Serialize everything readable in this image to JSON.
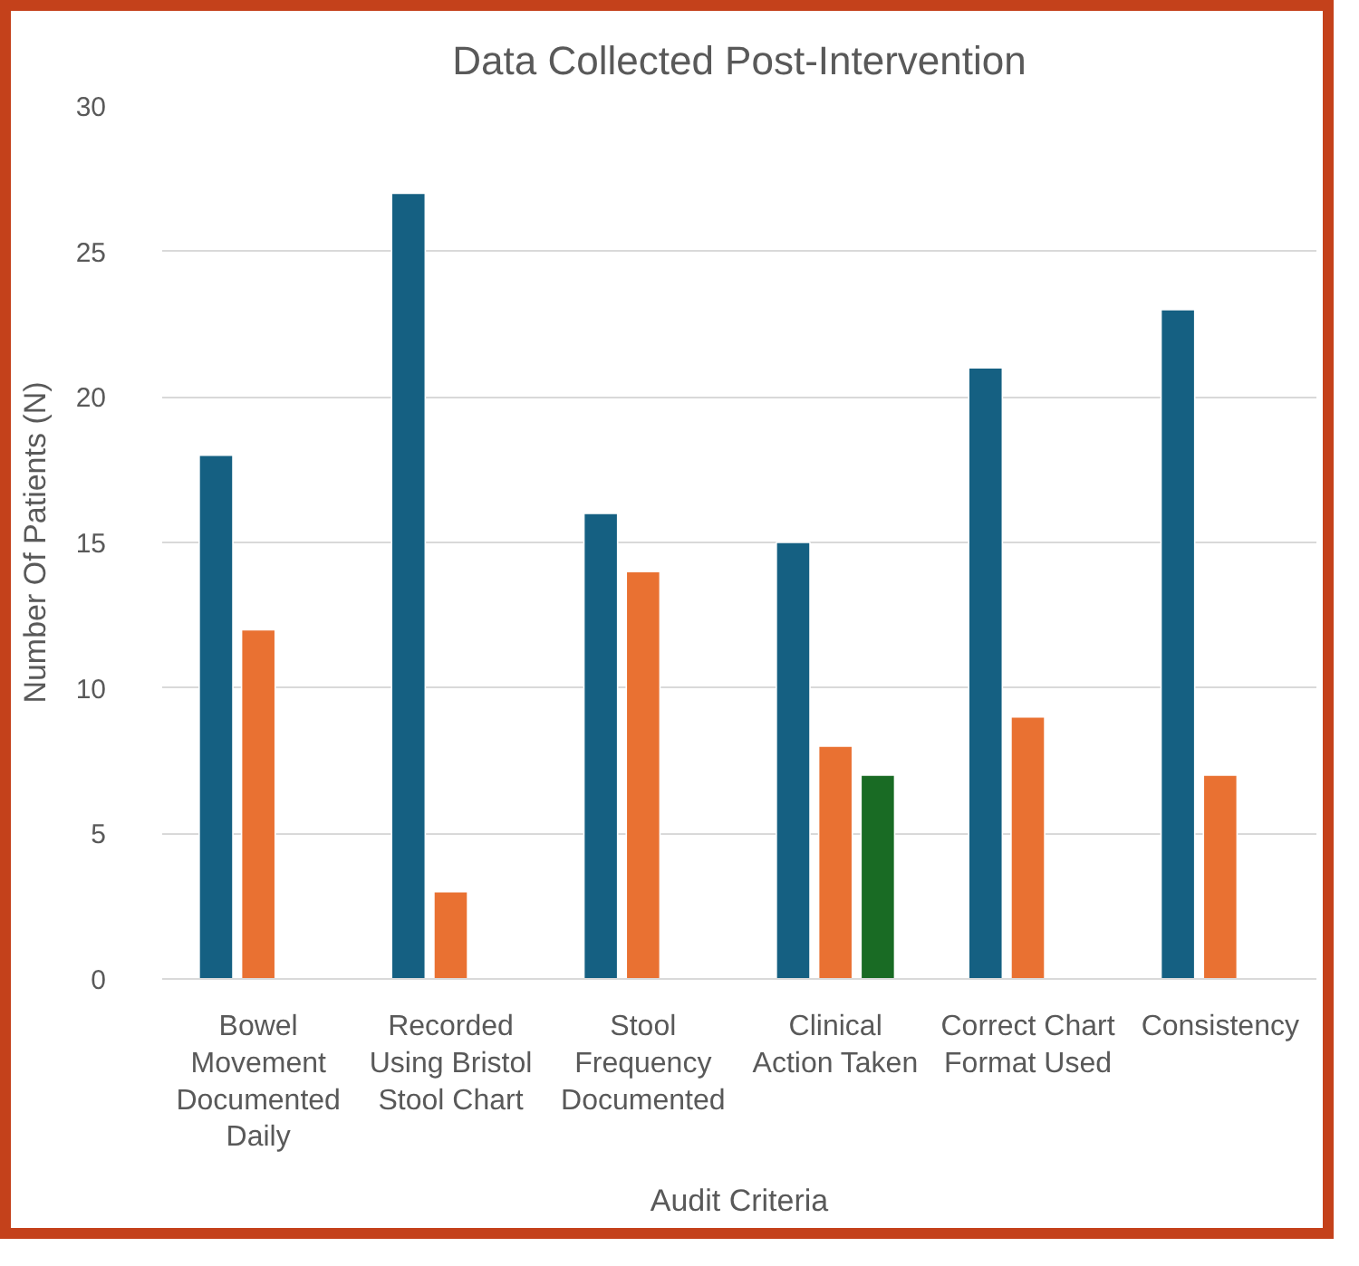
{
  "chart_data": {
    "type": "bar",
    "title": "Data Collected Post-Intervention",
    "xlabel": "Audit Criteria",
    "ylabel": "Number Of Patients (N)",
    "categories": [
      "Bowel Movement Documented Daily",
      "Recorded Using Bristol Stool Chart",
      "Stool Frequency Documented",
      "Clinical Action Taken",
      "Correct Chart Format Used",
      "Consistency"
    ],
    "series": [
      {
        "color": "#156082",
        "values": [
          18,
          27,
          16,
          15,
          21,
          23
        ]
      },
      {
        "color": "#e97132",
        "values": [
          12,
          3,
          14,
          8,
          9,
          7
        ]
      },
      {
        "color": "#196b24",
        "values": [
          null,
          null,
          null,
          7,
          null,
          null
        ]
      }
    ],
    "ylim": [
      0,
      30
    ],
    "yticks": [
      0,
      5,
      10,
      15,
      20,
      25,
      30
    ],
    "grid": "y"
  }
}
